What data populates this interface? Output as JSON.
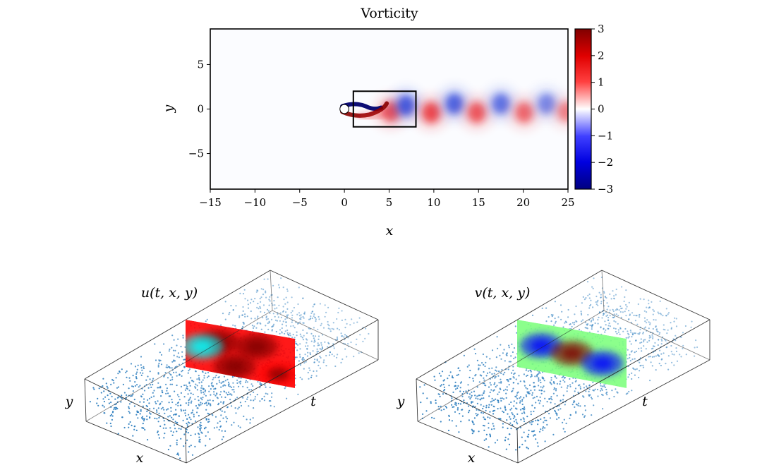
{
  "chart_data": [
    {
      "type": "heatmap",
      "title": "Vorticity",
      "xlabel": "x",
      "ylabel": "y",
      "xlim": [
        -15,
        25
      ],
      "ylim": [
        -9,
        9
      ],
      "xticks": [
        -15,
        -10,
        -5,
        0,
        5,
        10,
        15,
        20,
        25
      ],
      "xtick_labels": [
        "−15",
        "−10",
        "−5",
        "0",
        "5",
        "10",
        "15",
        "20",
        "25"
      ],
      "yticks": [
        5,
        0,
        -5
      ],
      "ytick_labels": [
        "5",
        "0",
        "−5"
      ],
      "colorbar": {
        "colormap": "seismic",
        "range": [
          -3,
          3
        ],
        "ticks": [
          3,
          2,
          1,
          0,
          -1,
          -2,
          -3
        ],
        "tick_labels": [
          "3",
          "2",
          "1",
          "0",
          "−1",
          "−2",
          "−3"
        ]
      },
      "colors": {
        "positive": "#e8121a",
        "negative": "#1433d6",
        "deep_positive": "#8a0000",
        "deep_negative": "#00006e"
      },
      "cylinder_center": [
        0,
        0
      ],
      "highlight_box": {
        "x": [
          1,
          8
        ],
        "y": [
          -2,
          2
        ]
      },
      "vortices": [
        {
          "x": 5.2,
          "y": -0.3,
          "sign": 1,
          "strength": 0.8
        },
        {
          "x": 6.9,
          "y": 0.4,
          "sign": -1,
          "strength": 0.9
        },
        {
          "x": 9.7,
          "y": -0.4,
          "sign": 1,
          "strength": 0.9
        },
        {
          "x": 12.3,
          "y": 0.6,
          "sign": -1,
          "strength": 0.85
        },
        {
          "x": 14.8,
          "y": -0.4,
          "sign": 1,
          "strength": 0.8
        },
        {
          "x": 17.5,
          "y": 0.6,
          "sign": -1,
          "strength": 0.75
        },
        {
          "x": 20.1,
          "y": -0.4,
          "sign": 1,
          "strength": 0.7
        },
        {
          "x": 22.6,
          "y": 0.6,
          "sign": -1,
          "strength": 0.6
        },
        {
          "x": 24.8,
          "y": -0.3,
          "sign": 1,
          "strength": 0.55
        }
      ]
    },
    {
      "type": "scatter",
      "title": "u(t, x, y)",
      "axis_labels": {
        "x": "x",
        "y": "y",
        "t": "t"
      },
      "points": "random scattered samples",
      "slice_colormap": "jet",
      "slice_blobs": [
        {
          "u": 0.3,
          "v": 0.3,
          "level": 0.95
        },
        {
          "u": 0.65,
          "v": 0.25,
          "level": 0.9
        },
        {
          "u": 0.45,
          "v": 0.75,
          "level": 0.92
        },
        {
          "u": 0.15,
          "v": 0.45,
          "level": 0.3
        },
        {
          "u": 0.85,
          "v": 0.75,
          "level": 0.85
        }
      ]
    },
    {
      "type": "scatter",
      "title": "v(t, x, y)",
      "axis_labels": {
        "x": "x",
        "y": "y",
        "t": "t"
      },
      "points": "random scattered samples",
      "slice_colormap": "jet",
      "slice_blobs": [
        {
          "u": 0.22,
          "v": 0.4,
          "level": 0.08
        },
        {
          "u": 0.5,
          "v": 0.45,
          "level": 0.95
        },
        {
          "u": 0.78,
          "v": 0.55,
          "level": 0.1
        }
      ]
    }
  ],
  "point_color": "#2f7fbf"
}
